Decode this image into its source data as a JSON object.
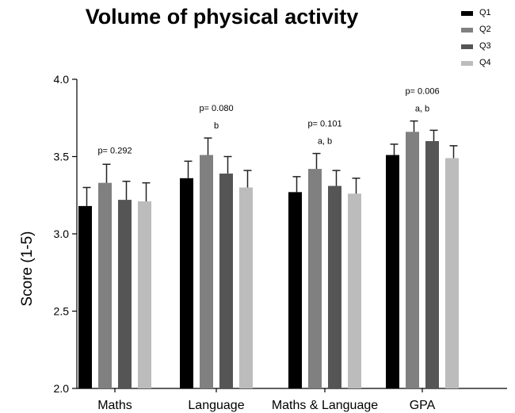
{
  "chart_data": {
    "type": "bar",
    "title": "Volume of physical activity",
    "xlabel": "",
    "ylabel": "Score (1-5)",
    "ylim": [
      2.0,
      4.0
    ],
    "yticks": [
      "2.0",
      "2.5",
      "3.0",
      "3.5",
      "4.0"
    ],
    "legend_position": "top-right",
    "grid": false,
    "categories": [
      "Maths",
      "Language",
      "Maths & Language",
      "GPA"
    ],
    "series": [
      {
        "name": "Q1",
        "color": "#000000",
        "values": [
          3.18,
          3.36,
          3.27,
          3.51
        ],
        "errors": [
          0.12,
          0.11,
          0.1,
          0.07
        ]
      },
      {
        "name": "Q2",
        "color": "#808080",
        "values": [
          3.33,
          3.51,
          3.42,
          3.66
        ],
        "errors": [
          0.12,
          0.11,
          0.1,
          0.07
        ]
      },
      {
        "name": "Q3",
        "color": "#555555",
        "values": [
          3.22,
          3.39,
          3.31,
          3.6
        ],
        "errors": [
          0.12,
          0.11,
          0.1,
          0.07
        ]
      },
      {
        "name": "Q4",
        "color": "#bcbcbc",
        "values": [
          3.21,
          3.3,
          3.26,
          3.49
        ],
        "errors": [
          0.12,
          0.11,
          0.1,
          0.08
        ]
      }
    ],
    "annotations": [
      {
        "category": "Maths",
        "pvalue": "p= 0.292",
        "letters": ""
      },
      {
        "category": "Language",
        "pvalue": "p= 0.080",
        "letters": "b"
      },
      {
        "category": "Maths & Language",
        "pvalue": "p= 0.101",
        "letters": "a, b"
      },
      {
        "category": "GPA",
        "pvalue": "p= 0.006",
        "letters": "a, b"
      }
    ]
  }
}
